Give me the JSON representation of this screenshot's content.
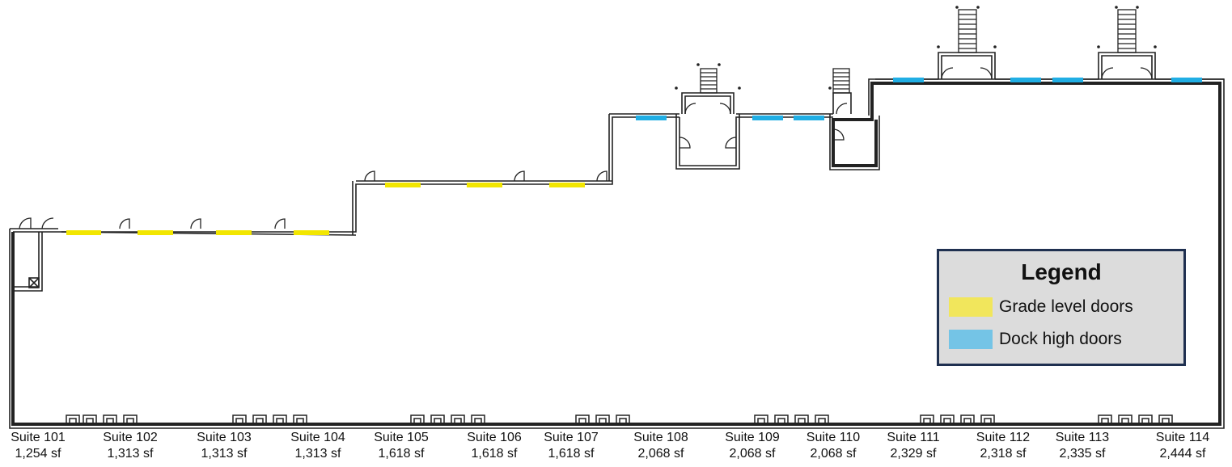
{
  "colors": {
    "grade_door": "#f2e600",
    "dock_door": "#20aee4",
    "wall": "#222222",
    "legend_grade": "#f1e65c",
    "legend_dock": "#74c4e6"
  },
  "legend": {
    "title": "Legend",
    "items": [
      {
        "label": "Grade level doors",
        "swatch": "#f1e65c"
      },
      {
        "label": "Dock high doors",
        "swatch": "#74c4e6"
      }
    ]
  },
  "suites": [
    {
      "name": "Suite 101",
      "area": "1,254 sf"
    },
    {
      "name": "Suite 102",
      "area": "1,313 sf"
    },
    {
      "name": "Suite 103",
      "area": "1,313 sf"
    },
    {
      "name": "Suite 104",
      "area": "1,313 sf"
    },
    {
      "name": "Suite 105",
      "area": "1,618 sf"
    },
    {
      "name": "Suite 106",
      "area": "1,618 sf"
    },
    {
      "name": "Suite 107",
      "area": "1,618 sf"
    },
    {
      "name": "Suite 108",
      "area": "2,068 sf"
    },
    {
      "name": "Suite 109",
      "area": "2,068 sf"
    },
    {
      "name": "Suite 110",
      "area": "2,068 sf"
    },
    {
      "name": "Suite 111",
      "area": "2,329 sf"
    },
    {
      "name": "Suite 112",
      "area": "2,318 sf"
    },
    {
      "name": "Suite 113",
      "area": "2,335 sf"
    },
    {
      "name": "Suite 114",
      "area": "2,444 sf"
    }
  ]
}
